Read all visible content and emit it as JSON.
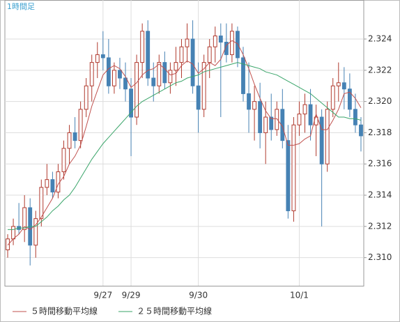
{
  "chart_data": {
    "type": "candlestick",
    "title": "1時間足",
    "categories": [
      null,
      null,
      null,
      null,
      null,
      null,
      null,
      null,
      null,
      null,
      null,
      null,
      null,
      null,
      null,
      null,
      null,
      "9/27",
      null,
      null,
      null,
      null,
      "9/29",
      null,
      null,
      null,
      null,
      null,
      null,
      null,
      null,
      null,
      null,
      null,
      "9/30",
      null,
      null,
      null,
      null,
      null,
      null,
      null,
      null,
      null,
      null,
      null,
      null,
      null,
      null,
      null,
      null,
      null,
      "10/1",
      null,
      null,
      null,
      null,
      null,
      null,
      null,
      null,
      null,
      null,
      null
    ],
    "open": [
      2.3105,
      2.3112,
      2.312,
      2.3118,
      2.3132,
      2.3108,
      2.3125,
      2.3145,
      2.315,
      2.3142,
      2.3155,
      2.317,
      2.318,
      2.3175,
      2.3195,
      2.321,
      2.3225,
      2.323,
      2.3228,
      2.321,
      2.322,
      2.3215,
      2.3208,
      2.319,
      2.3225,
      2.3245,
      2.3215,
      2.321,
      2.3225,
      2.3212,
      2.322,
      2.3225,
      2.3235,
      2.324,
      2.321,
      2.3195,
      2.3225,
      2.3235,
      2.3242,
      2.3238,
      2.323,
      2.3245,
      2.3228,
      2.3205,
      2.3195,
      2.32,
      2.318,
      2.319,
      2.3182,
      2.3195,
      2.3175,
      2.313,
      2.3185,
      2.3192,
      2.3198,
      2.3185,
      2.319,
      2.316,
      2.3195,
      2.321,
      2.3212,
      2.3208,
      2.3195,
      2.3185
    ],
    "high": [
      2.3115,
      2.3125,
      2.3135,
      2.314,
      2.3138,
      2.313,
      2.315,
      2.316,
      2.3155,
      2.316,
      2.3175,
      2.3185,
      2.319,
      2.32,
      2.3215,
      2.323,
      2.3238,
      2.3245,
      2.324,
      2.3225,
      2.3228,
      2.3225,
      2.3215,
      2.323,
      2.325,
      2.3252,
      2.3225,
      2.323,
      2.3232,
      2.3225,
      2.3235,
      2.324,
      2.325,
      2.3252,
      2.3225,
      2.323,
      2.324,
      2.3248,
      2.325,
      2.325,
      2.325,
      2.3248,
      2.3235,
      2.3225,
      2.321,
      2.3212,
      2.32,
      2.3205,
      2.32,
      2.3208,
      2.3185,
      2.319,
      2.32,
      2.3205,
      2.3208,
      2.3198,
      2.3195,
      2.32,
      2.3215,
      2.3225,
      2.3222,
      2.3218,
      2.3205,
      2.319
    ],
    "low": [
      2.31,
      2.3108,
      2.3115,
      2.311,
      2.3095,
      2.31,
      2.312,
      2.314,
      2.3138,
      2.3138,
      2.315,
      2.316,
      2.317,
      2.317,
      2.319,
      2.32,
      2.3215,
      2.322,
      2.3205,
      2.3205,
      2.3208,
      2.32,
      2.3165,
      2.3185,
      2.3215,
      2.321,
      2.32,
      2.3205,
      2.3208,
      2.3205,
      2.321,
      2.3215,
      2.3225,
      2.3205,
      2.318,
      2.319,
      2.3215,
      2.3225,
      2.319,
      2.3225,
      2.3225,
      2.3222,
      2.32,
      2.318,
      2.3175,
      2.317,
      2.316,
      2.3175,
      2.3178,
      2.317,
      2.3125,
      2.3123,
      2.3178,
      2.318,
      2.3175,
      2.3165,
      2.312,
      2.3155,
      2.319,
      2.32,
      2.3195,
      2.319,
      2.318,
      2.3168
    ],
    "close": [
      2.3112,
      2.312,
      2.3118,
      2.3132,
      2.3108,
      2.3125,
      2.3145,
      2.315,
      2.3142,
      2.3155,
      2.317,
      2.318,
      2.3175,
      2.3195,
      2.321,
      2.3225,
      2.323,
      2.3228,
      2.321,
      2.322,
      2.3215,
      2.3208,
      2.319,
      2.3225,
      2.3245,
      2.3215,
      2.321,
      2.3225,
      2.3212,
      2.322,
      2.3225,
      2.3235,
      2.324,
      2.321,
      2.3195,
      2.3225,
      2.3235,
      2.3242,
      2.3238,
      2.323,
      2.3245,
      2.3228,
      2.3205,
      2.3195,
      2.32,
      2.318,
      2.319,
      2.3182,
      2.3195,
      2.3175,
      2.313,
      2.3185,
      2.3192,
      2.3198,
      2.3185,
      2.319,
      2.316,
      2.3195,
      2.321,
      2.3212,
      2.3208,
      2.3195,
      2.3185,
      2.3178
    ],
    "up_color": "#b03a2e",
    "down_color": "#4682b4",
    "series": [
      {
        "name": "５時間移動平均線",
        "color": "#c0504d",
        "values": [
          2.3108,
          2.3112,
          2.3115,
          2.312,
          2.3118,
          2.3121,
          2.3126,
          2.3132,
          2.3138,
          2.3147,
          2.3152,
          2.316,
          2.3165,
          2.3172,
          2.3184,
          2.3197,
          2.3207,
          2.3217,
          2.3221,
          2.3223,
          2.3221,
          2.3216,
          2.3209,
          2.3212,
          2.3217,
          2.322,
          2.3221,
          2.3224,
          2.3221,
          2.3217,
          2.3218,
          2.3223,
          2.3226,
          2.3224,
          2.3218,
          2.3221,
          2.3225,
          2.3223,
          2.3227,
          2.3236,
          2.3239,
          2.3237,
          2.323,
          2.3221,
          2.3211,
          2.3202,
          2.3194,
          2.3189,
          2.3189,
          2.3184,
          2.3172,
          2.3172,
          2.3173,
          2.3176,
          2.3178,
          2.3192,
          2.3182,
          2.3182,
          2.3188,
          2.3195,
          2.3205,
          2.3206,
          2.3202,
          2.3196
        ]
      },
      {
        "name": "２５時間移動平均線",
        "color": "#3aa56a",
        "values": [
          2.3118,
          2.3118,
          2.3119,
          2.3119,
          2.312,
          2.312,
          2.3123,
          2.3126,
          2.313,
          2.3133,
          2.3137,
          2.314,
          2.3145,
          2.3151,
          2.3157,
          2.3163,
          2.3168,
          2.3173,
          2.3177,
          2.3181,
          2.3185,
          2.3189,
          2.3193,
          2.3197,
          2.32,
          2.3202,
          2.3204,
          2.3206,
          2.3208,
          2.321,
          2.3212,
          2.3213,
          2.3215,
          2.3216,
          2.3217,
          2.3219,
          2.322,
          2.3221,
          2.3222,
          2.3223,
          2.3224,
          2.3225,
          2.3224,
          2.3223,
          2.3222,
          2.3221,
          2.3219,
          2.3218,
          2.3217,
          2.3215,
          2.3213,
          2.3211,
          2.3209,
          2.3207,
          2.3205,
          2.3202,
          2.3199,
          2.3196,
          2.3193,
          2.319,
          2.319,
          2.3189,
          2.3189,
          2.3188
        ]
      }
    ],
    "ylim": [
      2.3082,
      2.3265
    ],
    "yticks": [
      {
        "value": 2.31,
        "label": "2.310"
      },
      2.312,
      2.314,
      2.316,
      2.318,
      {
        "value": 2.32,
        "label": "2.320"
      },
      2.322,
      2.324
    ],
    "grid": true
  }
}
